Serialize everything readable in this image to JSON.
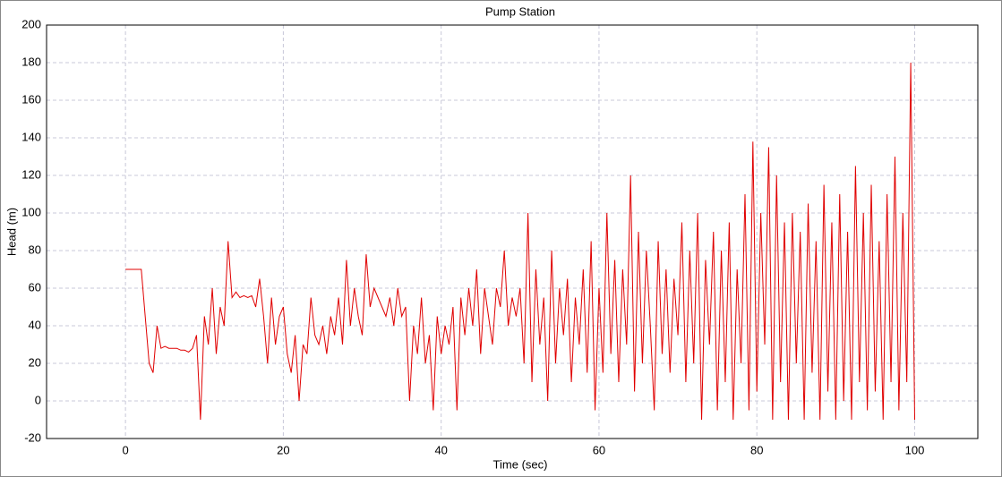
{
  "chart_data": {
    "type": "line",
    "title": "Pump Station",
    "x_label": "Time (sec)",
    "y_label": "Head (m)",
    "x": [
      0,
      0.5,
      1,
      1.5,
      2,
      2.5,
      3,
      3.5,
      4,
      4.5,
      5,
      5.5,
      6,
      6.5,
      7,
      7.5,
      8,
      8.5,
      9,
      9.5,
      10,
      10.5,
      11,
      11.5,
      12,
      12.5,
      13,
      13.5,
      14,
      14.5,
      15,
      15.5,
      16,
      16.5,
      17,
      17.5,
      18,
      18.5,
      19,
      19.5,
      20,
      20.5,
      21,
      21.5,
      22,
      22.5,
      23,
      23.5,
      24,
      24.5,
      25,
      25.5,
      26,
      26.5,
      27,
      27.5,
      28,
      28.5,
      29,
      29.5,
      30,
      30.5,
      31,
      31.5,
      32,
      32.5,
      33,
      33.5,
      34,
      34.5,
      35,
      35.5,
      36,
      36.5,
      37,
      37.5,
      38,
      38.5,
      39,
      39.5,
      40,
      40.5,
      41,
      41.5,
      42,
      42.5,
      43,
      43.5,
      44,
      44.5,
      45,
      45.5,
      46,
      46.5,
      47,
      47.5,
      48,
      48.5,
      49,
      49.5,
      50,
      50.5,
      51,
      51.5,
      52,
      52.5,
      53,
      53.5,
      54,
      54.5,
      55,
      55.5,
      56,
      56.5,
      57,
      57.5,
      58,
      58.5,
      59,
      59.5,
      60,
      60.5,
      61,
      61.5,
      62,
      62.5,
      63,
      63.5,
      64,
      64.5,
      65,
      65.5,
      66,
      66.5,
      67,
      67.5,
      68,
      68.5,
      69,
      69.5,
      70,
      70.5,
      71,
      71.5,
      72,
      72.5,
      73,
      73.5,
      74,
      74.5,
      75,
      75.5,
      76,
      76.5,
      77,
      77.5,
      78,
      78.5,
      79,
      79.5,
      80,
      80.5,
      81,
      81.5,
      82,
      82.5,
      83,
      83.5,
      84,
      84.5,
      85,
      85.5,
      86,
      86.5,
      87,
      87.5,
      88,
      88.5,
      89,
      89.5,
      90,
      90.5,
      91,
      91.5,
      92,
      92.5,
      93,
      93.5,
      94,
      94.5,
      95,
      95.5,
      96,
      96.5,
      97,
      97.5,
      98,
      98.5,
      99,
      99.5,
      100
    ],
    "series": [
      {
        "name": "Head",
        "color": "#e00000",
        "values": [
          70,
          70,
          70,
          70,
          70,
          45,
          20,
          15,
          40,
          28,
          29,
          28,
          28,
          28,
          27,
          27,
          26,
          28,
          35,
          -10,
          45,
          30,
          60,
          25,
          50,
          40,
          85,
          55,
          58,
          55,
          56,
          55,
          56,
          50,
          65,
          45,
          20,
          55,
          30,
          45,
          50,
          25,
          15,
          35,
          0,
          30,
          25,
          55,
          35,
          30,
          40,
          25,
          45,
          35,
          55,
          30,
          75,
          40,
          60,
          45,
          35,
          78,
          50,
          60,
          55,
          50,
          45,
          55,
          40,
          60,
          45,
          50,
          0,
          40,
          25,
          55,
          20,
          35,
          -5,
          45,
          25,
          40,
          30,
          50,
          -5,
          55,
          35,
          60,
          40,
          70,
          25,
          60,
          45,
          30,
          60,
          50,
          80,
          40,
          55,
          45,
          60,
          20,
          100,
          10,
          70,
          30,
          55,
          0,
          80,
          20,
          60,
          35,
          65,
          10,
          55,
          30,
          70,
          15,
          85,
          -5,
          60,
          15,
          100,
          25,
          75,
          10,
          70,
          30,
          120,
          5,
          90,
          20,
          80,
          40,
          -5,
          85,
          25,
          70,
          15,
          65,
          35,
          95,
          10,
          80,
          20,
          100,
          -10,
          75,
          30,
          90,
          -5,
          80,
          10,
          95,
          -10,
          70,
          20,
          110,
          -5,
          138,
          5,
          100,
          30,
          135,
          -10,
          120,
          10,
          95,
          -10,
          100,
          20,
          90,
          -10,
          105,
          15,
          85,
          -10,
          115,
          5,
          95,
          -10,
          110,
          0,
          90,
          -10,
          125,
          10,
          100,
          -5,
          115,
          5,
          85,
          -10,
          110,
          10,
          130,
          -5,
          100,
          10,
          180,
          -10
        ]
      }
    ],
    "xlim": [
      -10,
      108
    ],
    "ylim": [
      -20,
      200
    ],
    "xticks": [
      0,
      20,
      40,
      60,
      80,
      100
    ],
    "yticks": [
      -20,
      0,
      20,
      40,
      60,
      80,
      100,
      120,
      140,
      160,
      180,
      200
    ],
    "grid": true
  }
}
